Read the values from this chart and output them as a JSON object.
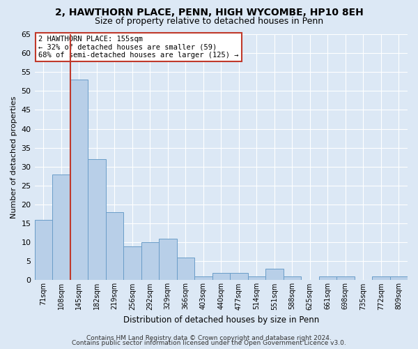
{
  "title1": "2, HAWTHORN PLACE, PENN, HIGH WYCOMBE, HP10 8EH",
  "title2": "Size of property relative to detached houses in Penn",
  "xlabel": "Distribution of detached houses by size in Penn",
  "ylabel": "Number of detached properties",
  "footnote1": "Contains HM Land Registry data © Crown copyright and database right 2024.",
  "footnote2": "Contains public sector information licensed under the Open Government Licence v3.0.",
  "categories": [
    "71sqm",
    "108sqm",
    "145sqm",
    "182sqm",
    "219sqm",
    "256sqm",
    "292sqm",
    "329sqm",
    "366sqm",
    "403sqm",
    "440sqm",
    "477sqm",
    "514sqm",
    "551sqm",
    "588sqm",
    "625sqm",
    "661sqm",
    "698sqm",
    "735sqm",
    "772sqm",
    "809sqm"
  ],
  "values": [
    16,
    28,
    53,
    32,
    18,
    9,
    10,
    11,
    6,
    1,
    2,
    2,
    1,
    3,
    1,
    0,
    1,
    1,
    0,
    1,
    1
  ],
  "bar_color": "#b8cfe8",
  "bar_edge_color": "#6a9dc8",
  "vline_color": "#c0392b",
  "annotation_title": "2 HAWTHORN PLACE: 155sqm",
  "annotation_line1": "← 32% of detached houses are smaller (59)",
  "annotation_line2": "68% of semi-detached houses are larger (125) →",
  "annotation_box_color": "#ffffff",
  "annotation_box_edge": "#c0392b",
  "ylim": [
    0,
    65
  ],
  "yticks": [
    0,
    5,
    10,
    15,
    20,
    25,
    30,
    35,
    40,
    45,
    50,
    55,
    60,
    65
  ],
  "bg_color": "#dce8f5",
  "grid_color": "#ffffff",
  "title1_fontsize": 10,
  "title2_fontsize": 9,
  "footnote_fontsize": 6.5
}
